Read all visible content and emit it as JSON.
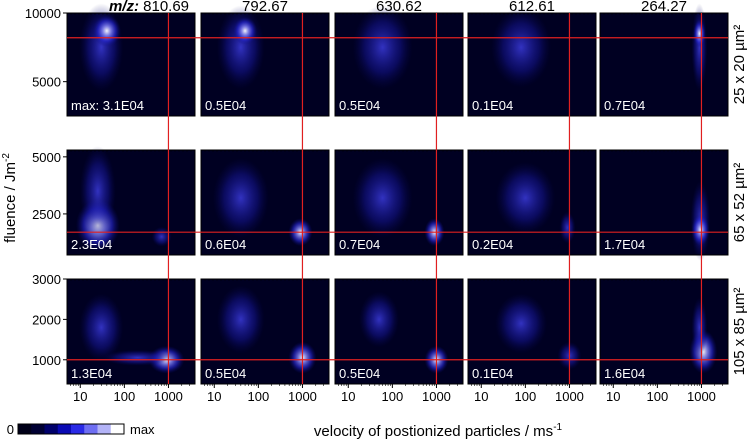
{
  "chart_data": {
    "type": "heatmap",
    "title": "",
    "xlabel": "velocity of postionized particles / ms",
    "xlabel_sup": "-1",
    "ylabel": "fluence / Jm",
    "ylabel_sup": "-2",
    "x_scale": "log",
    "x_tick_labels": [
      "10",
      "100",
      "1000"
    ],
    "x_ticks": [
      10,
      100,
      1000
    ],
    "xlim": [
      5,
      4000
    ],
    "mz_label": "m/z",
    "columns": [
      "810.69",
      "792.67",
      "630.62",
      "612.61",
      "264.27"
    ],
    "rows": [
      {
        "name": "25 x 20 µm²",
        "ylim": [
          2500,
          10000
        ],
        "y_ticks": [
          5000,
          10000
        ],
        "y_tick_labels": [
          "5000",
          "10000"
        ],
        "ref_y": 8200,
        "max_values": [
          "max: 3.1E04",
          "0.5E04",
          "0.5E04",
          "0.1E04",
          "0.7E04"
        ]
      },
      {
        "name": "65 x 52 µm²",
        "ylim": [
          700,
          5300
        ],
        "y_ticks": [
          2500,
          5000
        ],
        "y_tick_labels": [
          "2500",
          "5000"
        ],
        "ref_y": 1700,
        "max_values": [
          "2.3E04",
          "0.6E04",
          "0.7E04",
          "0.2E04",
          "1.7E04"
        ]
      },
      {
        "name": "105 x 85 µm²",
        "ylim": [
          400,
          3000
        ],
        "y_ticks": [
          1000,
          2000,
          3000
        ],
        "y_tick_labels": [
          "1000",
          "2000",
          "3000"
        ],
        "ref_y": 1000,
        "max_values": [
          "1.3E04",
          "0.5E04",
          "0.5E04",
          "0.1E04",
          "1.6E04"
        ]
      }
    ],
    "ref_x": 1000,
    "colorbar": {
      "min_label": "0",
      "max_label": "max",
      "colors": [
        "#000018",
        "#000033",
        "#00006b",
        "#0a0ab4",
        "#2a2ae6",
        "#6e6ef2",
        "#b3b3f7",
        "#ffffff"
      ]
    },
    "colors": {
      "background": "#000022",
      "ref_line": "#e02020",
      "label": "#ffffff"
    }
  }
}
